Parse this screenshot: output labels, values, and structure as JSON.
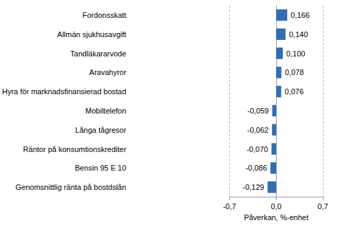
{
  "chart_data": {
    "type": "bar",
    "orientation": "horizontal",
    "x_label": "Påverkan, %-enhet",
    "categories": [
      "Fordonsskatt",
      "Allmän sjukhusavgift",
      "Tandläkararvode",
      "Aravahyror",
      "Hyra för marknadsfinansierad bostad",
      "Mobiltelefon",
      "Långa tågresor",
      "Räntor på konsumtionskrediter",
      "Bensin 95 E 10",
      "Genomsnittlig ränta på bostdslån"
    ],
    "values": [
      0.166,
      0.14,
      0.1,
      0.078,
      0.076,
      -0.059,
      -0.062,
      -0.07,
      -0.086,
      -0.129
    ],
    "value_labels": [
      "0,166",
      "0,140",
      "0,100",
      "0,078",
      "0,076",
      "-0,059",
      "-0,062",
      "-0,070",
      "-0,086",
      "-0,129"
    ],
    "color": "#2f6eb5",
    "xlim": [
      -0.7,
      0.7
    ],
    "xticks": [
      {
        "value": -0.7,
        "label": "-0,7"
      },
      {
        "value": 0,
        "label": "0,0"
      },
      {
        "value": 0.7,
        "label": "0,7"
      }
    ],
    "grid": true,
    "data_labels": true
  }
}
